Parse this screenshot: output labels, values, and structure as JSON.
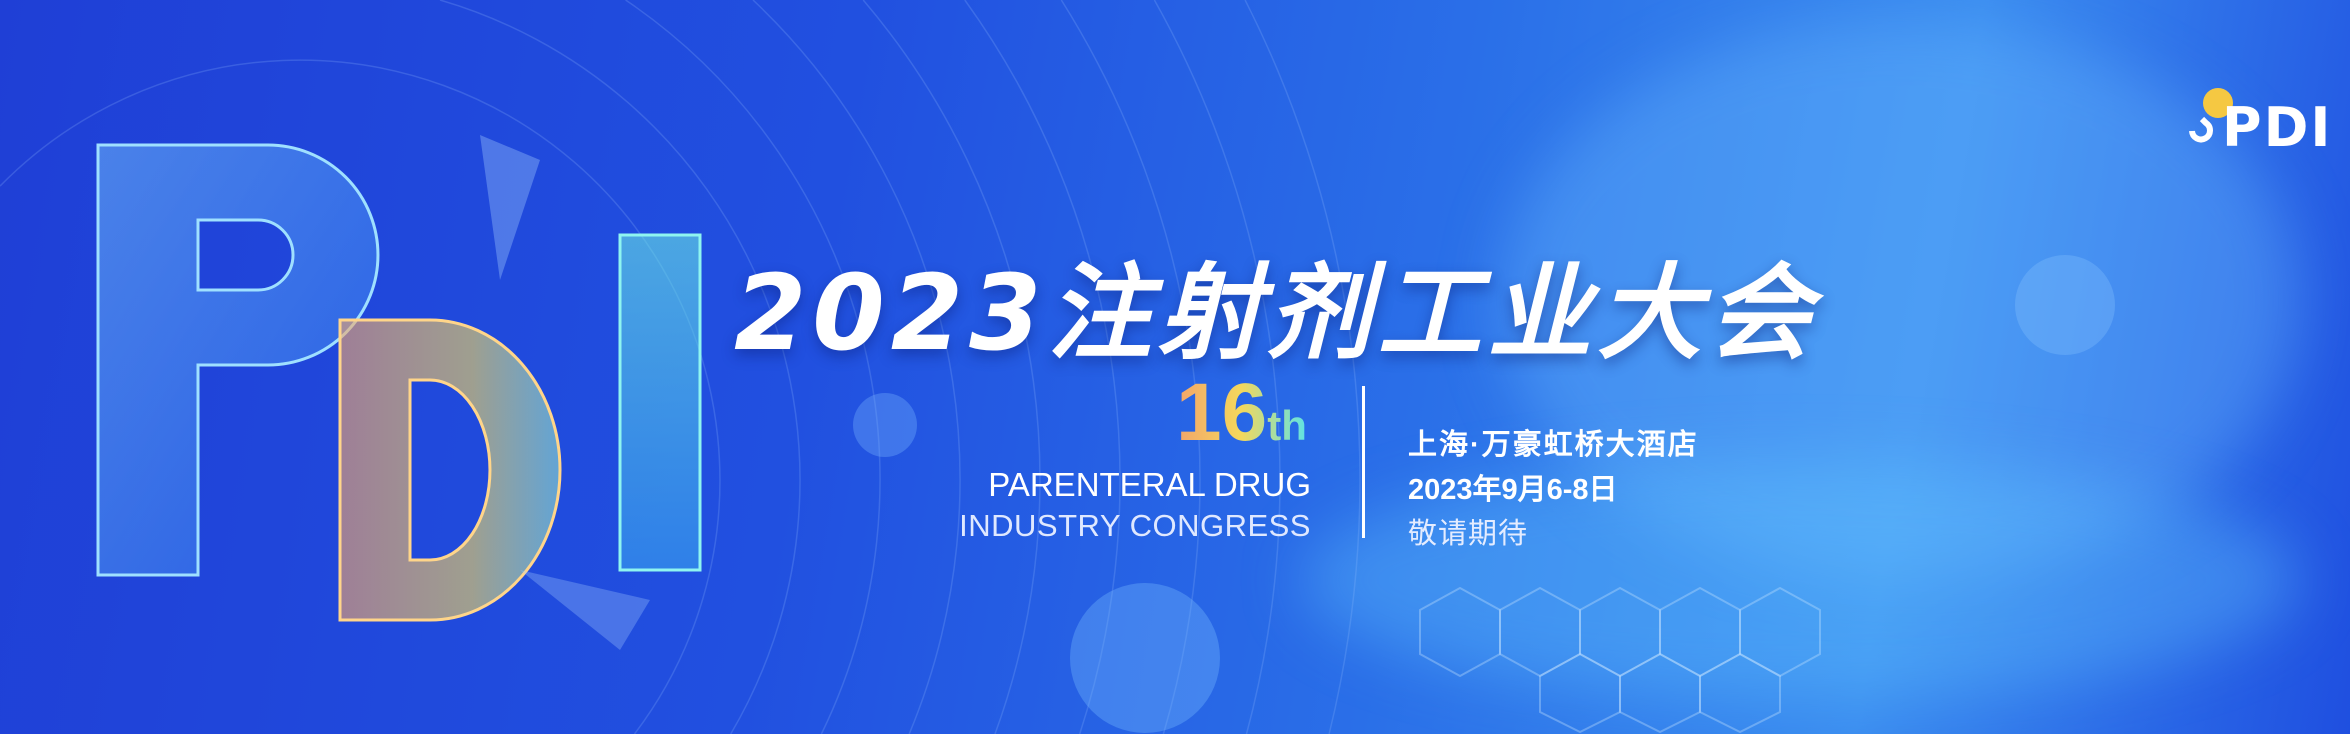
{
  "banner": {
    "title": "2023注射剂工业大会",
    "edition_number": "16",
    "edition_suffix": "th",
    "english_line1": "PARENTERAL DRUG",
    "english_line2": "INDUSTRY CONGRESS",
    "venue": "上海·万豪虹桥大酒店",
    "date": "2023年9月6-8日",
    "tagline": "敬请期待",
    "logo_text": "PDI",
    "decor_letters": "PDI"
  },
  "colors": {
    "background": "#2150e0",
    "logo_drop": "#f5c842",
    "gradient_orange": "#f3a46a",
    "gradient_yellow": "#f4d85c",
    "gradient_cyan": "#5de3e6"
  }
}
